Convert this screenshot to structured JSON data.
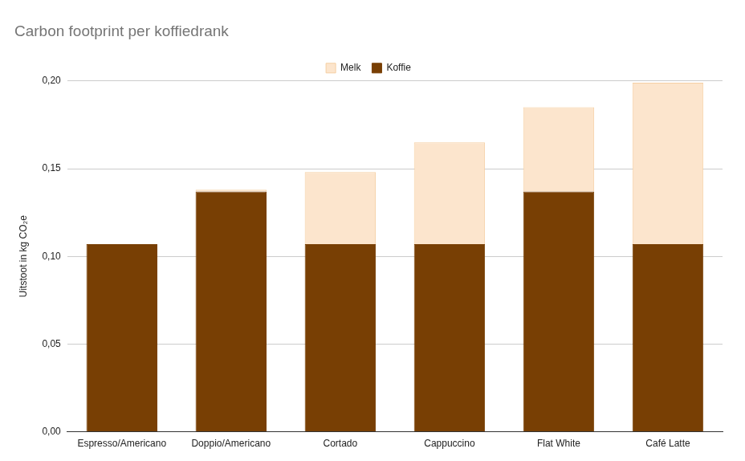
{
  "chart_data": {
    "type": "bar",
    "title": "Carbon footprint per koffiedrank",
    "y_label": "Uitstoot in kg CO₂e",
    "categories": [
      "Espresso/Americano",
      "Doppio/Americano",
      "Cortado",
      "Cappuccino",
      "Flat White",
      "Café Latte"
    ],
    "series": [
      {
        "name": "Koffie",
        "color": "#783f04",
        "values": [
          0.107,
          0.137,
          0.107,
          0.107,
          0.137,
          0.107
        ]
      },
      {
        "name": "Melk",
        "color": "#fce5cd",
        "values": [
          0,
          0.001,
          0.041,
          0.058,
          0.048,
          0.092
        ]
      }
    ],
    "stacked": true,
    "ylim": [
      0,
      0.2
    ],
    "yticks": [
      {
        "value": 0,
        "label": "0,00"
      },
      {
        "value": 0.05,
        "label": "0,05"
      },
      {
        "value": 0.1,
        "label": "0,10"
      },
      {
        "value": 0.15,
        "label": "0,15"
      },
      {
        "value": 0.2,
        "label": "0,20"
      }
    ],
    "grid": true,
    "legend": "top"
  }
}
